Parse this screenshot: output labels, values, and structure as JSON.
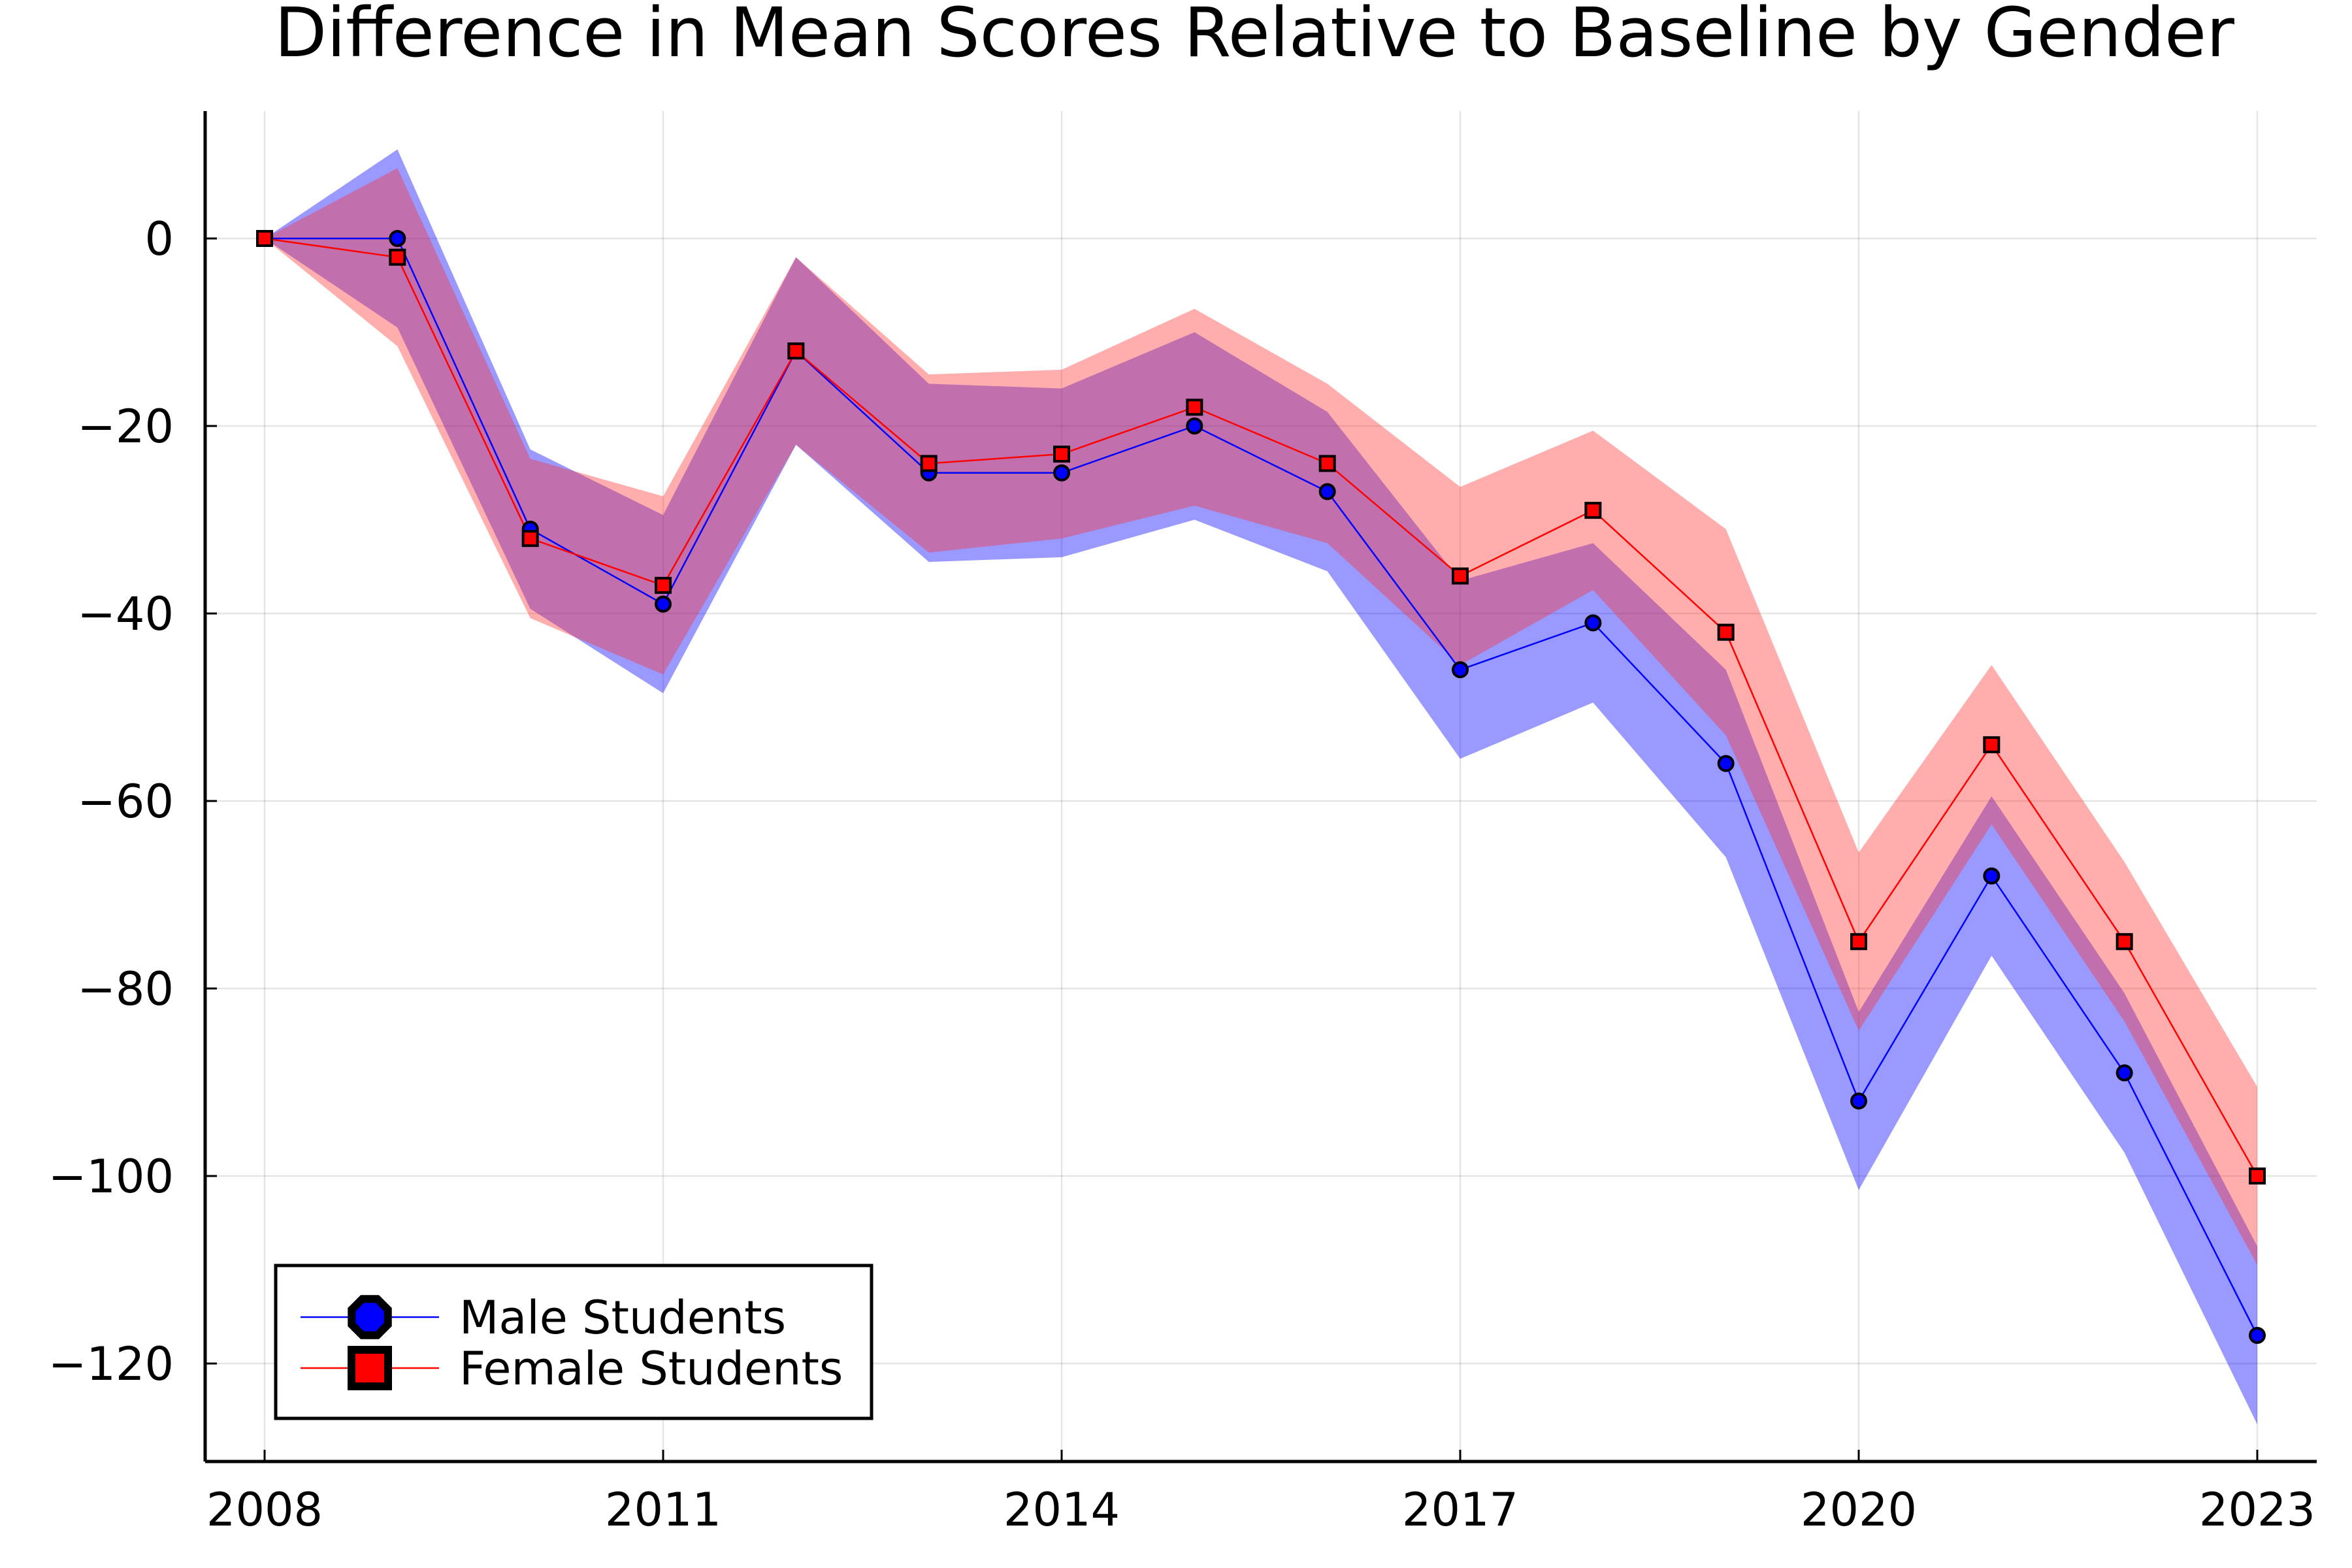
{
  "chart_data": {
    "type": "line",
    "title": "Difference in Mean Scores Relative to Baseline by Gender",
    "xlabel": "",
    "ylabel": "",
    "x": [
      2008,
      2009,
      2010,
      2011,
      2012,
      2013,
      2014,
      2015,
      2016,
      2017,
      2018,
      2019,
      2020,
      2021,
      2022,
      2023
    ],
    "xlim": [
      2008,
      2023
    ],
    "ylim": [
      -130,
      13
    ],
    "xticks": [
      2008,
      2011,
      2014,
      2017,
      2020,
      2023
    ],
    "xtick_labels": [
      "2008",
      "2011",
      "2014",
      "2017",
      "2020",
      "2023"
    ],
    "yticks": [
      0,
      -20,
      -40,
      -60,
      -80,
      -100,
      -120
    ],
    "ytick_labels": [
      "0",
      "−20",
      "−40",
      "−60",
      "−80",
      "−100",
      "−120"
    ],
    "grid": true,
    "legend_position": "bottom-left",
    "series": [
      {
        "name": "Male Students",
        "color": "#0000ff",
        "band_color": "#0000ff",
        "marker": "circle",
        "values": [
          0,
          0,
          -31,
          -39,
          -12,
          -25,
          -25,
          -20,
          -27,
          -46,
          -41,
          -56,
          -92,
          -68,
          -89,
          -117
        ],
        "upper": [
          0,
          9.5,
          -22.5,
          -29.5,
          -2,
          -15.5,
          -16,
          -10,
          -18.5,
          -36.5,
          -32.5,
          -46,
          -82.5,
          -59.5,
          -80.5,
          -107.5
        ],
        "lower": [
          0,
          -9.5,
          -39.5,
          -48.5,
          -22,
          -34.5,
          -34,
          -30,
          -35.5,
          -55.5,
          -49.5,
          -66,
          -101.5,
          -76.5,
          -97.5,
          -126.5
        ]
      },
      {
        "name": "Female Students",
        "color": "#ff0000",
        "band_color": "#ff3333",
        "marker": "square",
        "values": [
          0,
          -2,
          -32,
          -37,
          -12,
          -24,
          -23,
          -18,
          -24,
          -36,
          -29,
          -42,
          -75,
          -54,
          -75,
          -100
        ],
        "upper": [
          0,
          7.5,
          -23.5,
          -27.5,
          -2,
          -14.5,
          -14,
          -7.5,
          -15.5,
          -26.5,
          -20.5,
          -31,
          -65.5,
          -45.5,
          -66.5,
          -90.5
        ],
        "lower": [
          0,
          -11.5,
          -40.5,
          -46.5,
          -22,
          -33.5,
          -32,
          -28.5,
          -32.5,
          -45.5,
          -37.5,
          -53,
          -84.5,
          -62.5,
          -83.5,
          -109.5
        ]
      }
    ]
  }
}
